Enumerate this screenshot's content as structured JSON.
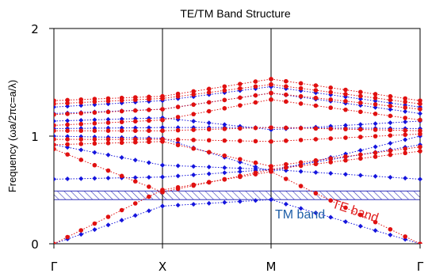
{
  "chart_data": {
    "type": "scatter",
    "title": "TE/TM Band Structure",
    "ylabel": "Frequency (ωa/2πc=a/λ)",
    "ylim": [
      0,
      2
    ],
    "y_ticks": [
      "0",
      "1",
      "2"
    ],
    "x_ticks": [
      "Γ",
      "X",
      "M",
      "Γ"
    ],
    "gap": {
      "from": 0.41,
      "to": 0.49
    },
    "annotations": {
      "tm": "TM band",
      "te": "TE band"
    },
    "colors": {
      "tm": "#1515dd",
      "te": "#e01010",
      "gap": "#3333bb",
      "tm_text": "#1f5fa8",
      "te_text": "#e01a1a"
    },
    "tm_band_data": [
      {
        "segment": "GX",
        "endpoints": [
          0.0,
          0.35
        ]
      },
      {
        "segment": "GX",
        "endpoints": [
          0.6,
          0.62
        ]
      },
      {
        "segment": "GX",
        "endpoints": [
          0.92,
          0.73
        ]
      },
      {
        "segment": "GX",
        "endpoints": [
          1.0,
          0.98
        ]
      },
      {
        "segment": "GX",
        "endpoints": [
          1.07,
          1.08
        ]
      },
      {
        "segment": "GX",
        "endpoints": [
          1.14,
          1.17
        ]
      },
      {
        "segment": "GX",
        "endpoints": [
          1.21,
          1.25
        ]
      },
      {
        "segment": "GX",
        "endpoints": [
          1.27,
          1.33
        ]
      },
      {
        "segment": "XM",
        "endpoints": [
          0.35,
          0.41
        ]
      },
      {
        "segment": "XM",
        "endpoints": [
          0.62,
          0.69
        ]
      },
      {
        "segment": "XM",
        "endpoints": [
          0.73,
          0.69
        ]
      },
      {
        "segment": "XM",
        "endpoints": [
          0.98,
          0.67
        ]
      },
      {
        "segment": "XM",
        "endpoints": [
          1.08,
          1.08
        ]
      },
      {
        "segment": "XM",
        "endpoints": [
          1.17,
          1.06
        ]
      },
      {
        "segment": "XM",
        "endpoints": [
          1.25,
          1.4
        ]
      },
      {
        "segment": "XM",
        "endpoints": [
          1.33,
          1.46
        ]
      },
      {
        "segment": "MG",
        "endpoints": [
          0.41,
          0.0
        ]
      },
      {
        "segment": "MG",
        "endpoints": [
          0.69,
          0.6
        ]
      },
      {
        "segment": "MG",
        "endpoints": [
          0.69,
          0.92
        ]
      },
      {
        "segment": "MG",
        "endpoints": [
          0.67,
          1.0
        ]
      },
      {
        "segment": "MG",
        "endpoints": [
          1.08,
          1.07
        ]
      },
      {
        "segment": "MG",
        "endpoints": [
          1.06,
          1.14
        ]
      },
      {
        "segment": "MG",
        "endpoints": [
          1.4,
          1.21
        ]
      },
      {
        "segment": "MG",
        "endpoints": [
          1.46,
          1.27
        ]
      }
    ],
    "te_band_data": [
      {
        "segment": "GX",
        "endpoints": [
          0.0,
          0.5
        ]
      },
      {
        "segment": "GX",
        "endpoints": [
          0.88,
          0.48
        ]
      },
      {
        "segment": "GX",
        "endpoints": [
          0.92,
          0.95
        ]
      },
      {
        "segment": "GX",
        "endpoints": [
          0.97,
          0.97
        ]
      },
      {
        "segment": "GX",
        "endpoints": [
          1.05,
          1.05
        ]
      },
      {
        "segment": "GX",
        "endpoints": [
          1.1,
          1.15
        ]
      },
      {
        "segment": "GX",
        "endpoints": [
          1.2,
          1.25
        ]
      },
      {
        "segment": "GX",
        "endpoints": [
          1.3,
          1.35
        ]
      },
      {
        "segment": "GX",
        "endpoints": [
          1.33,
          1.37
        ]
      },
      {
        "segment": "XM",
        "endpoints": [
          0.5,
          0.67
        ]
      },
      {
        "segment": "XM",
        "endpoints": [
          0.48,
          0.69
        ]
      },
      {
        "segment": "XM",
        "endpoints": [
          0.95,
          0.72
        ]
      },
      {
        "segment": "XM",
        "endpoints": [
          0.97,
          0.95
        ]
      },
      {
        "segment": "XM",
        "endpoints": [
          1.05,
          1.08
        ]
      },
      {
        "segment": "XM",
        "endpoints": [
          1.15,
          1.34
        ]
      },
      {
        "segment": "XM",
        "endpoints": [
          1.25,
          1.4
        ]
      },
      {
        "segment": "XM",
        "endpoints": [
          1.35,
          1.48
        ]
      },
      {
        "segment": "XM",
        "endpoints": [
          1.37,
          1.53
        ]
      },
      {
        "segment": "MG",
        "endpoints": [
          0.67,
          0.0
        ]
      },
      {
        "segment": "MG",
        "endpoints": [
          0.69,
          0.86
        ]
      },
      {
        "segment": "MG",
        "endpoints": [
          0.72,
          0.9
        ]
      },
      {
        "segment": "MG",
        "endpoints": [
          0.95,
          1.02
        ]
      },
      {
        "segment": "MG",
        "endpoints": [
          1.08,
          1.05
        ]
      },
      {
        "segment": "MG",
        "endpoints": [
          1.34,
          1.15
        ]
      },
      {
        "segment": "MG",
        "endpoints": [
          1.4,
          1.25
        ]
      },
      {
        "segment": "MG",
        "endpoints": [
          1.48,
          1.3
        ]
      },
      {
        "segment": "MG",
        "endpoints": [
          1.53,
          1.33
        ]
      }
    ]
  }
}
